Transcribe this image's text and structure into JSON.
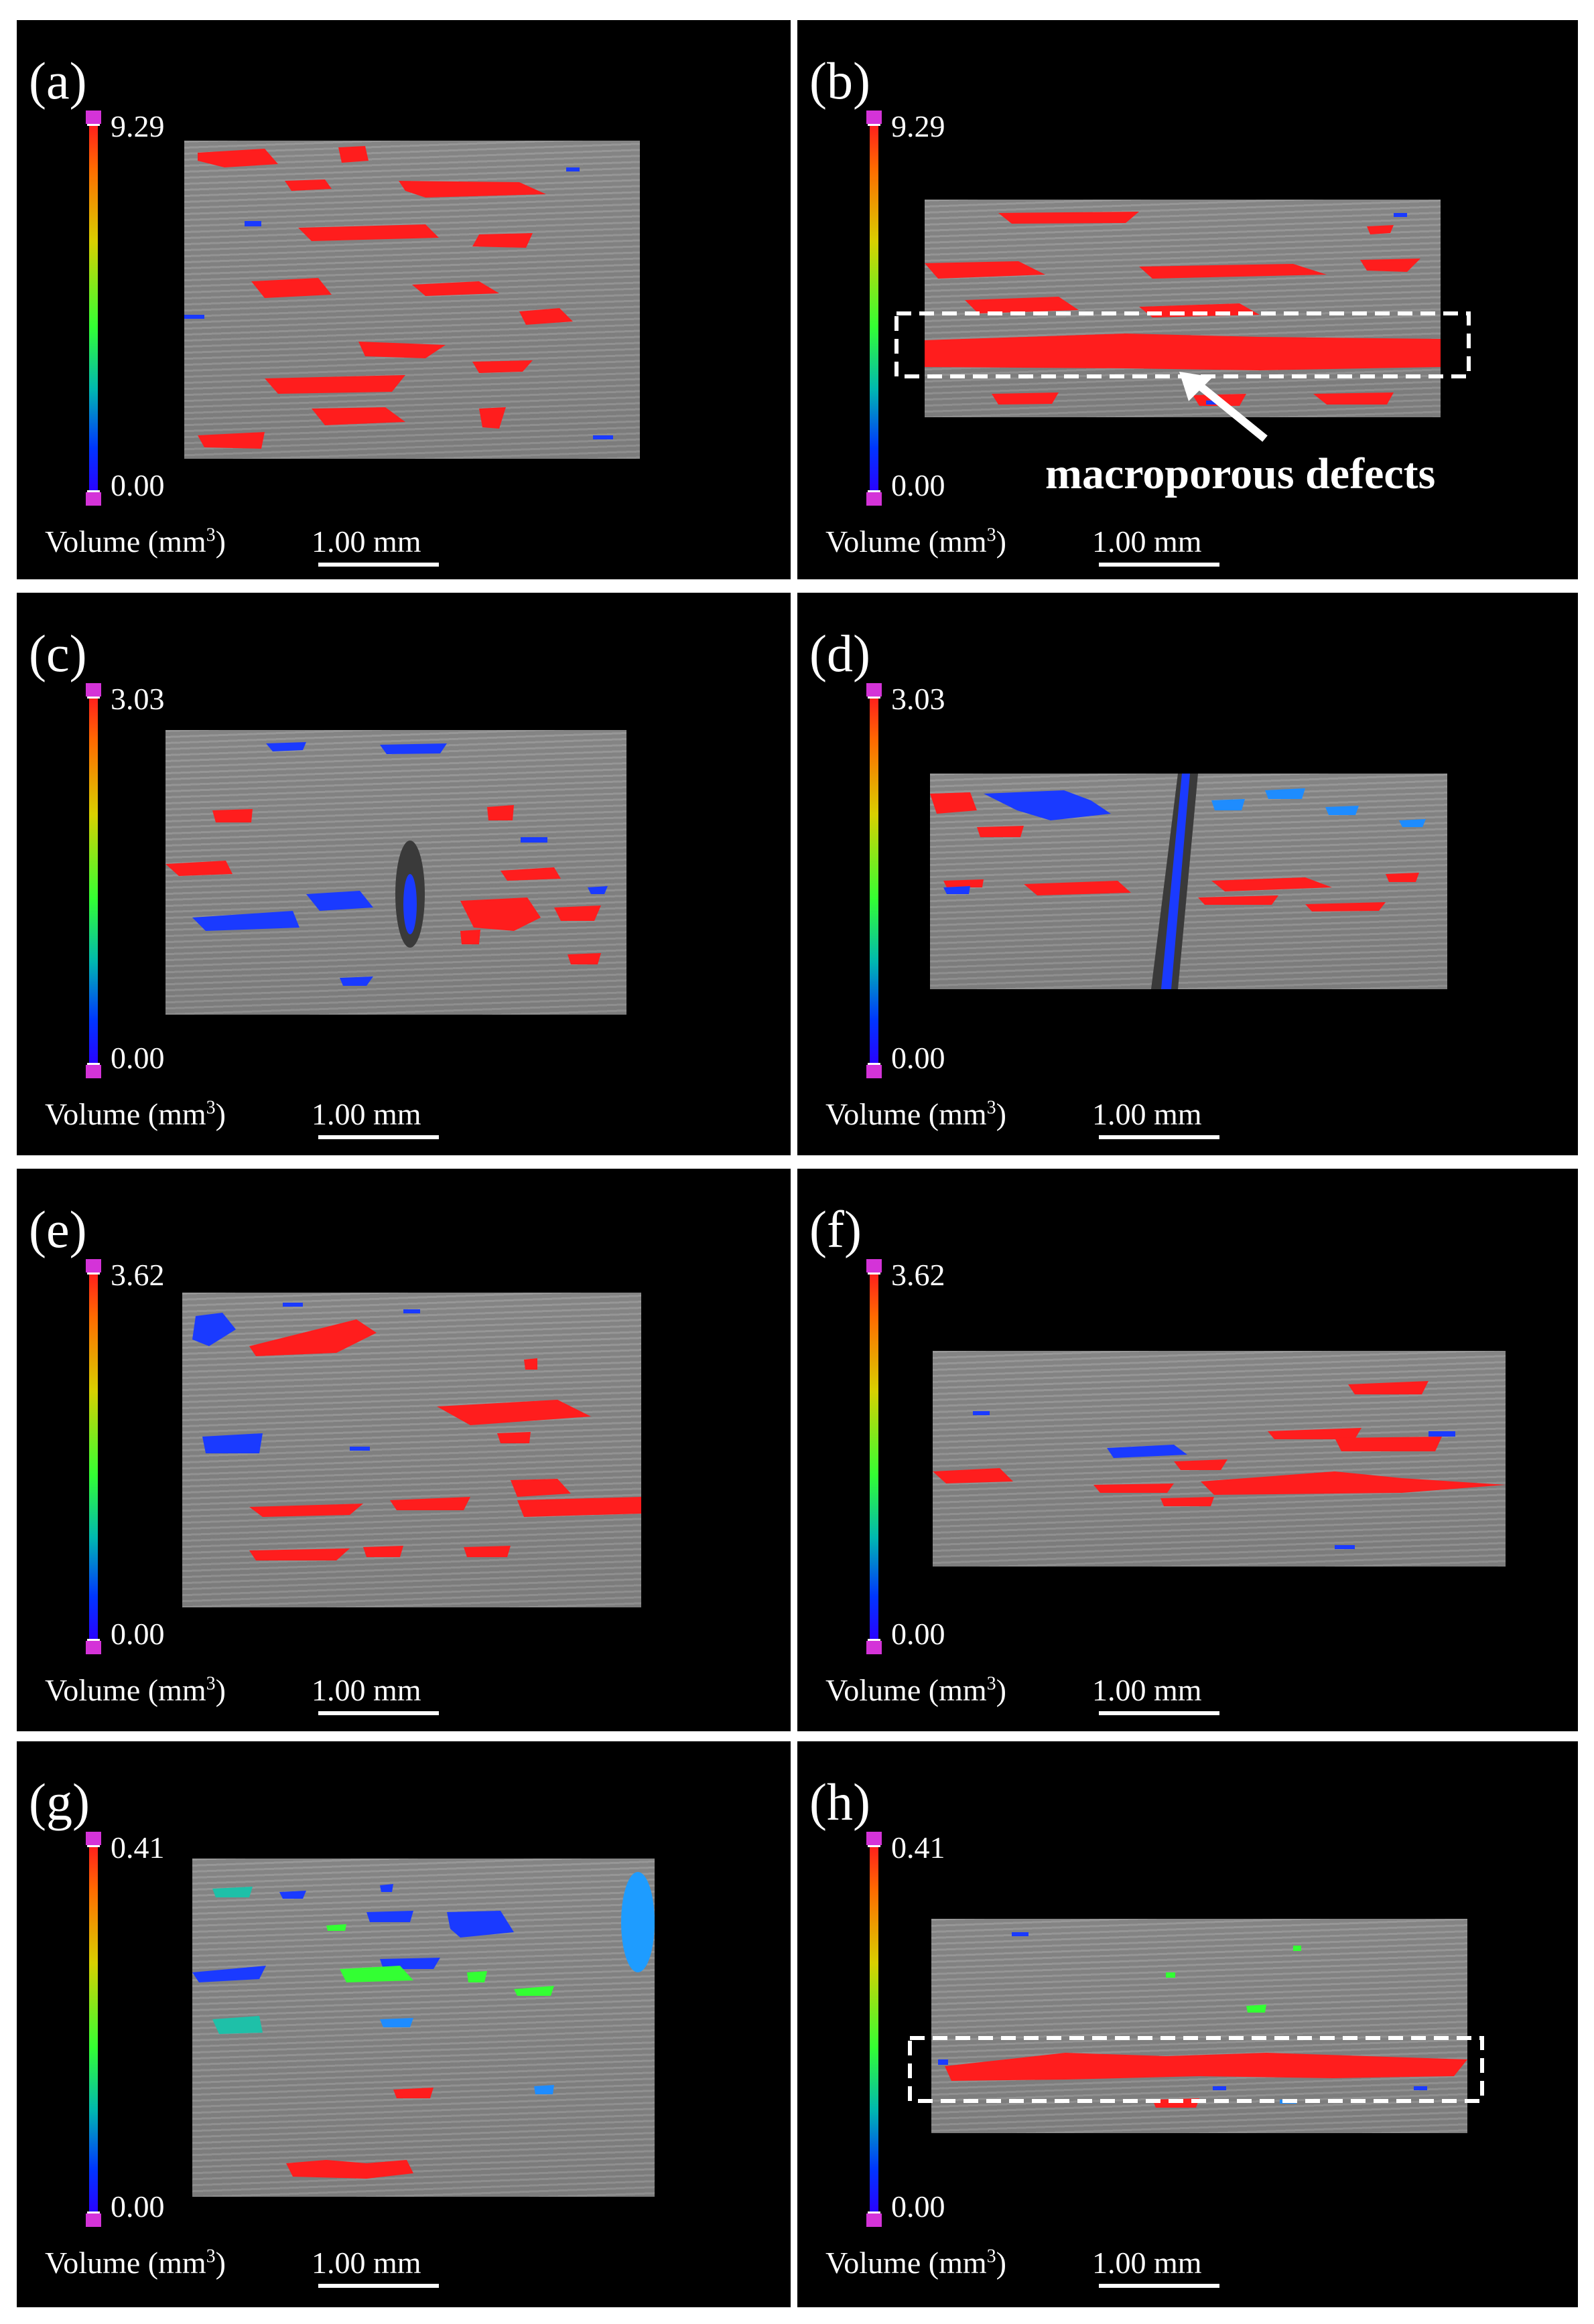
{
  "figure": {
    "volume_label": "Volume (mm",
    "volume_unit_sup": "3",
    "volume_label_close": ")",
    "scale_label": "1.00 mm",
    "annotation": "macroporous defects",
    "colors": {
      "high": "#ff1d1d",
      "low": "#0035ff",
      "mid": "#33ff33",
      "endcap": "#d433d8"
    },
    "panels": [
      {
        "id": "a",
        "label": "(a)",
        "vmax": "9.29",
        "vmin": "0.00"
      },
      {
        "id": "b",
        "label": "(b)",
        "vmax": "9.29",
        "vmin": "0.00"
      },
      {
        "id": "c",
        "label": "(c)",
        "vmax": "3.03",
        "vmin": "0.00"
      },
      {
        "id": "d",
        "label": "(d)",
        "vmax": "3.03",
        "vmin": "0.00"
      },
      {
        "id": "e",
        "label": "(e)",
        "vmax": "3.62",
        "vmin": "0.00"
      },
      {
        "id": "f",
        "label": "(f)",
        "vmax": "3.62",
        "vmin": "0.00"
      },
      {
        "id": "g",
        "label": "(g)",
        "vmax": "0.41",
        "vmin": "0.00"
      },
      {
        "id": "h",
        "label": "(h)",
        "vmax": "0.41",
        "vmin": "0.00"
      }
    ]
  }
}
